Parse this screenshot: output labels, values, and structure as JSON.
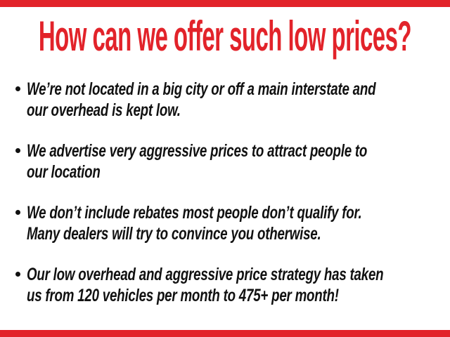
{
  "page": {
    "accent_color": "#e2232a",
    "text_color": "#111111"
  },
  "heading": {
    "text": "How can we offer such low prices?"
  },
  "bullets": [
    {
      "lines": [
        "We’re not located in a big city or off a main interstate and",
        "our overhead is kept low."
      ]
    },
    {
      "lines": [
        "We advertise very aggressive prices to attract people to",
        "our location"
      ]
    },
    {
      "lines": [
        "We don’t include rebates most people don’t qualify for.",
        "Many dealers will try to convince you otherwise."
      ]
    },
    {
      "lines": [
        "Our low overhead and aggressive price strategy has taken",
        "us from 120 vehicles per month to 475+ per month!"
      ]
    }
  ]
}
